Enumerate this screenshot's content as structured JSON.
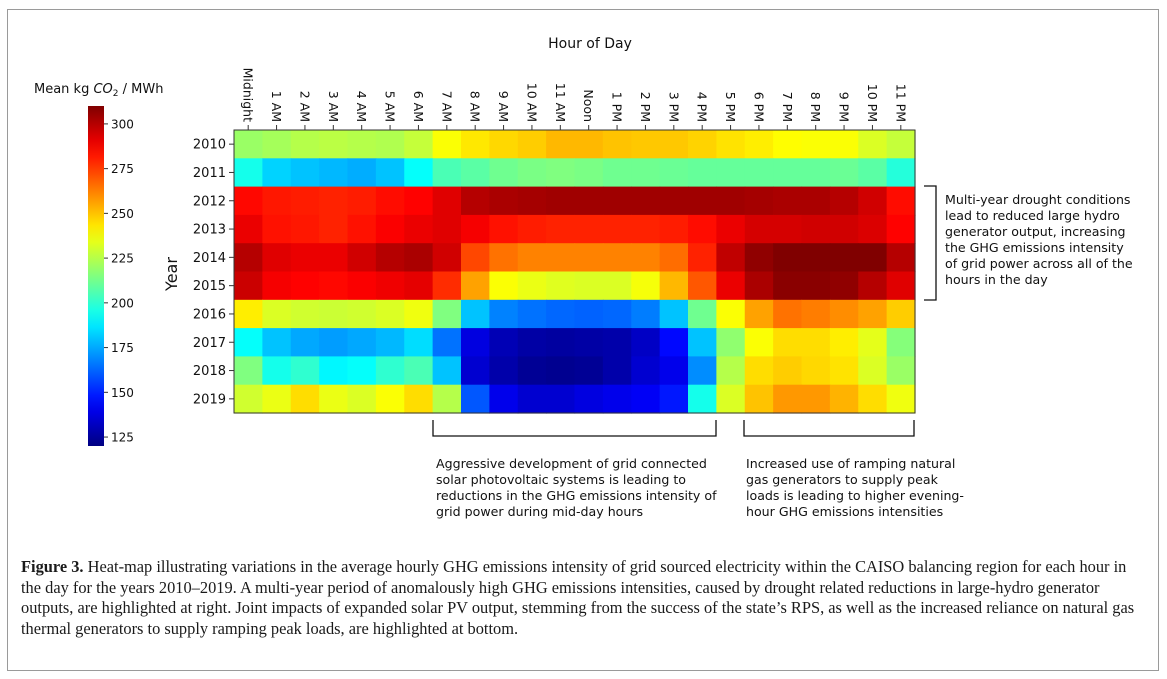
{
  "chart_data": {
    "type": "heatmap",
    "title": "Hour of Day",
    "ylabel": "Year",
    "colorbar_label": "Mean kg CO2 / MWh",
    "colorbar_label_parts": [
      "Mean kg ",
      "CO",
      "2",
      " / MWh"
    ],
    "colorbar_ticks": [
      300,
      275,
      250,
      225,
      200,
      175,
      150,
      125
    ],
    "value_range": [
      120,
      310
    ],
    "colormap": "jet",
    "x_labels": [
      "Midnight",
      "1 AM",
      "2 AM",
      "3 AM",
      "4 AM",
      "5 AM",
      "6 AM",
      "7 AM",
      "8 AM",
      "9 AM",
      "10 AM",
      "11 AM",
      "Noon",
      "1 PM",
      "2 PM",
      "3 PM",
      "4 PM",
      "5 PM",
      "6 PM",
      "7 PM",
      "8 PM",
      "9 PM",
      "10 PM",
      "11 PM"
    ],
    "y_labels": [
      "2010",
      "2011",
      "2012",
      "2013",
      "2014",
      "2015",
      "2016",
      "2017",
      "2018",
      "2019"
    ],
    "values": [
      [
        220,
        222,
        225,
        226,
        225,
        224,
        228,
        238,
        243,
        246,
        248,
        252,
        252,
        250,
        249,
        249,
        247,
        244,
        242,
        239,
        238,
        238,
        232,
        228
      ],
      [
        195,
        183,
        180,
        178,
        176,
        180,
        192,
        205,
        208,
        212,
        214,
        215,
        214,
        212,
        212,
        211,
        210,
        210,
        210,
        210,
        210,
        211,
        208,
        198
      ],
      [
        285,
        282,
        281,
        280,
        281,
        284,
        286,
        292,
        300,
        302,
        303,
        304,
        304,
        304,
        304,
        304,
        304,
        304,
        303,
        302,
        302,
        300,
        295,
        284
      ],
      [
        290,
        283,
        282,
        280,
        283,
        287,
        290,
        292,
        288,
        283,
        281,
        280,
        280,
        280,
        280,
        281,
        284,
        290,
        294,
        294,
        295,
        295,
        293,
        286
      ],
      [
        300,
        292,
        290,
        290,
        295,
        300,
        302,
        295,
        273,
        265,
        262,
        262,
        262,
        262,
        262,
        266,
        280,
        298,
        307,
        310,
        310,
        310,
        310,
        300
      ],
      [
        296,
        288,
        286,
        285,
        287,
        289,
        291,
        278,
        256,
        238,
        235,
        233,
        232,
        232,
        237,
        252,
        270,
        290,
        302,
        308,
        308,
        307,
        300,
        292
      ],
      [
        242,
        232,
        230,
        229,
        230,
        232,
        236,
        215,
        180,
        168,
        165,
        163,
        162,
        163,
        167,
        180,
        212,
        238,
        256,
        265,
        263,
        260,
        256,
        248
      ],
      [
        192,
        180,
        175,
        173,
        175,
        178,
        185,
        165,
        138,
        130,
        127,
        126,
        127,
        128,
        133,
        145,
        180,
        218,
        238,
        245,
        245,
        242,
        234,
        216
      ],
      [
        215,
        195,
        200,
        190,
        192,
        200,
        205,
        180,
        135,
        128,
        124,
        123,
        124,
        128,
        135,
        140,
        170,
        225,
        245,
        248,
        246,
        244,
        232,
        220
      ],
      [
        230,
        235,
        245,
        235,
        232,
        238,
        245,
        225,
        160,
        140,
        135,
        135,
        138,
        140,
        142,
        148,
        195,
        232,
        250,
        258,
        258,
        253,
        245,
        236
      ]
    ]
  },
  "annotations": {
    "right": [
      "Multi-year drought conditions",
      "lead to reduced large hydro",
      "generator output, increasing",
      "the GHG emissions intensity",
      "of grid power across all of the",
      "hours in the day"
    ],
    "bottom_left": [
      "Aggressive development of grid connected",
      "solar photovoltaic systems is leading to",
      "reductions in the GHG emissions intensity of",
      "grid power during mid-day hours"
    ],
    "bottom_right": [
      "Increased use of ramping natural",
      "gas generators to supply peak",
      "loads is leading to higher evening-",
      "hour GHG emissions intensities"
    ]
  },
  "caption": {
    "label": "Figure 3.",
    "text": " Heat-map illustrating variations in the average hourly GHG emissions intensity of grid sourced electricity within the CAISO balancing region for each hour in the day for the years 2010–2019. A multi-year period of anomalously high GHG emissions intensities, caused by drought related reductions in large-hydro generator outputs, are highlighted at right. Joint impacts of expanded solar PV output, stemming from the success of the state’s RPS, as well as the increased reliance on natural gas thermal generators to supply ramping peak loads, are highlighted at bottom."
  }
}
